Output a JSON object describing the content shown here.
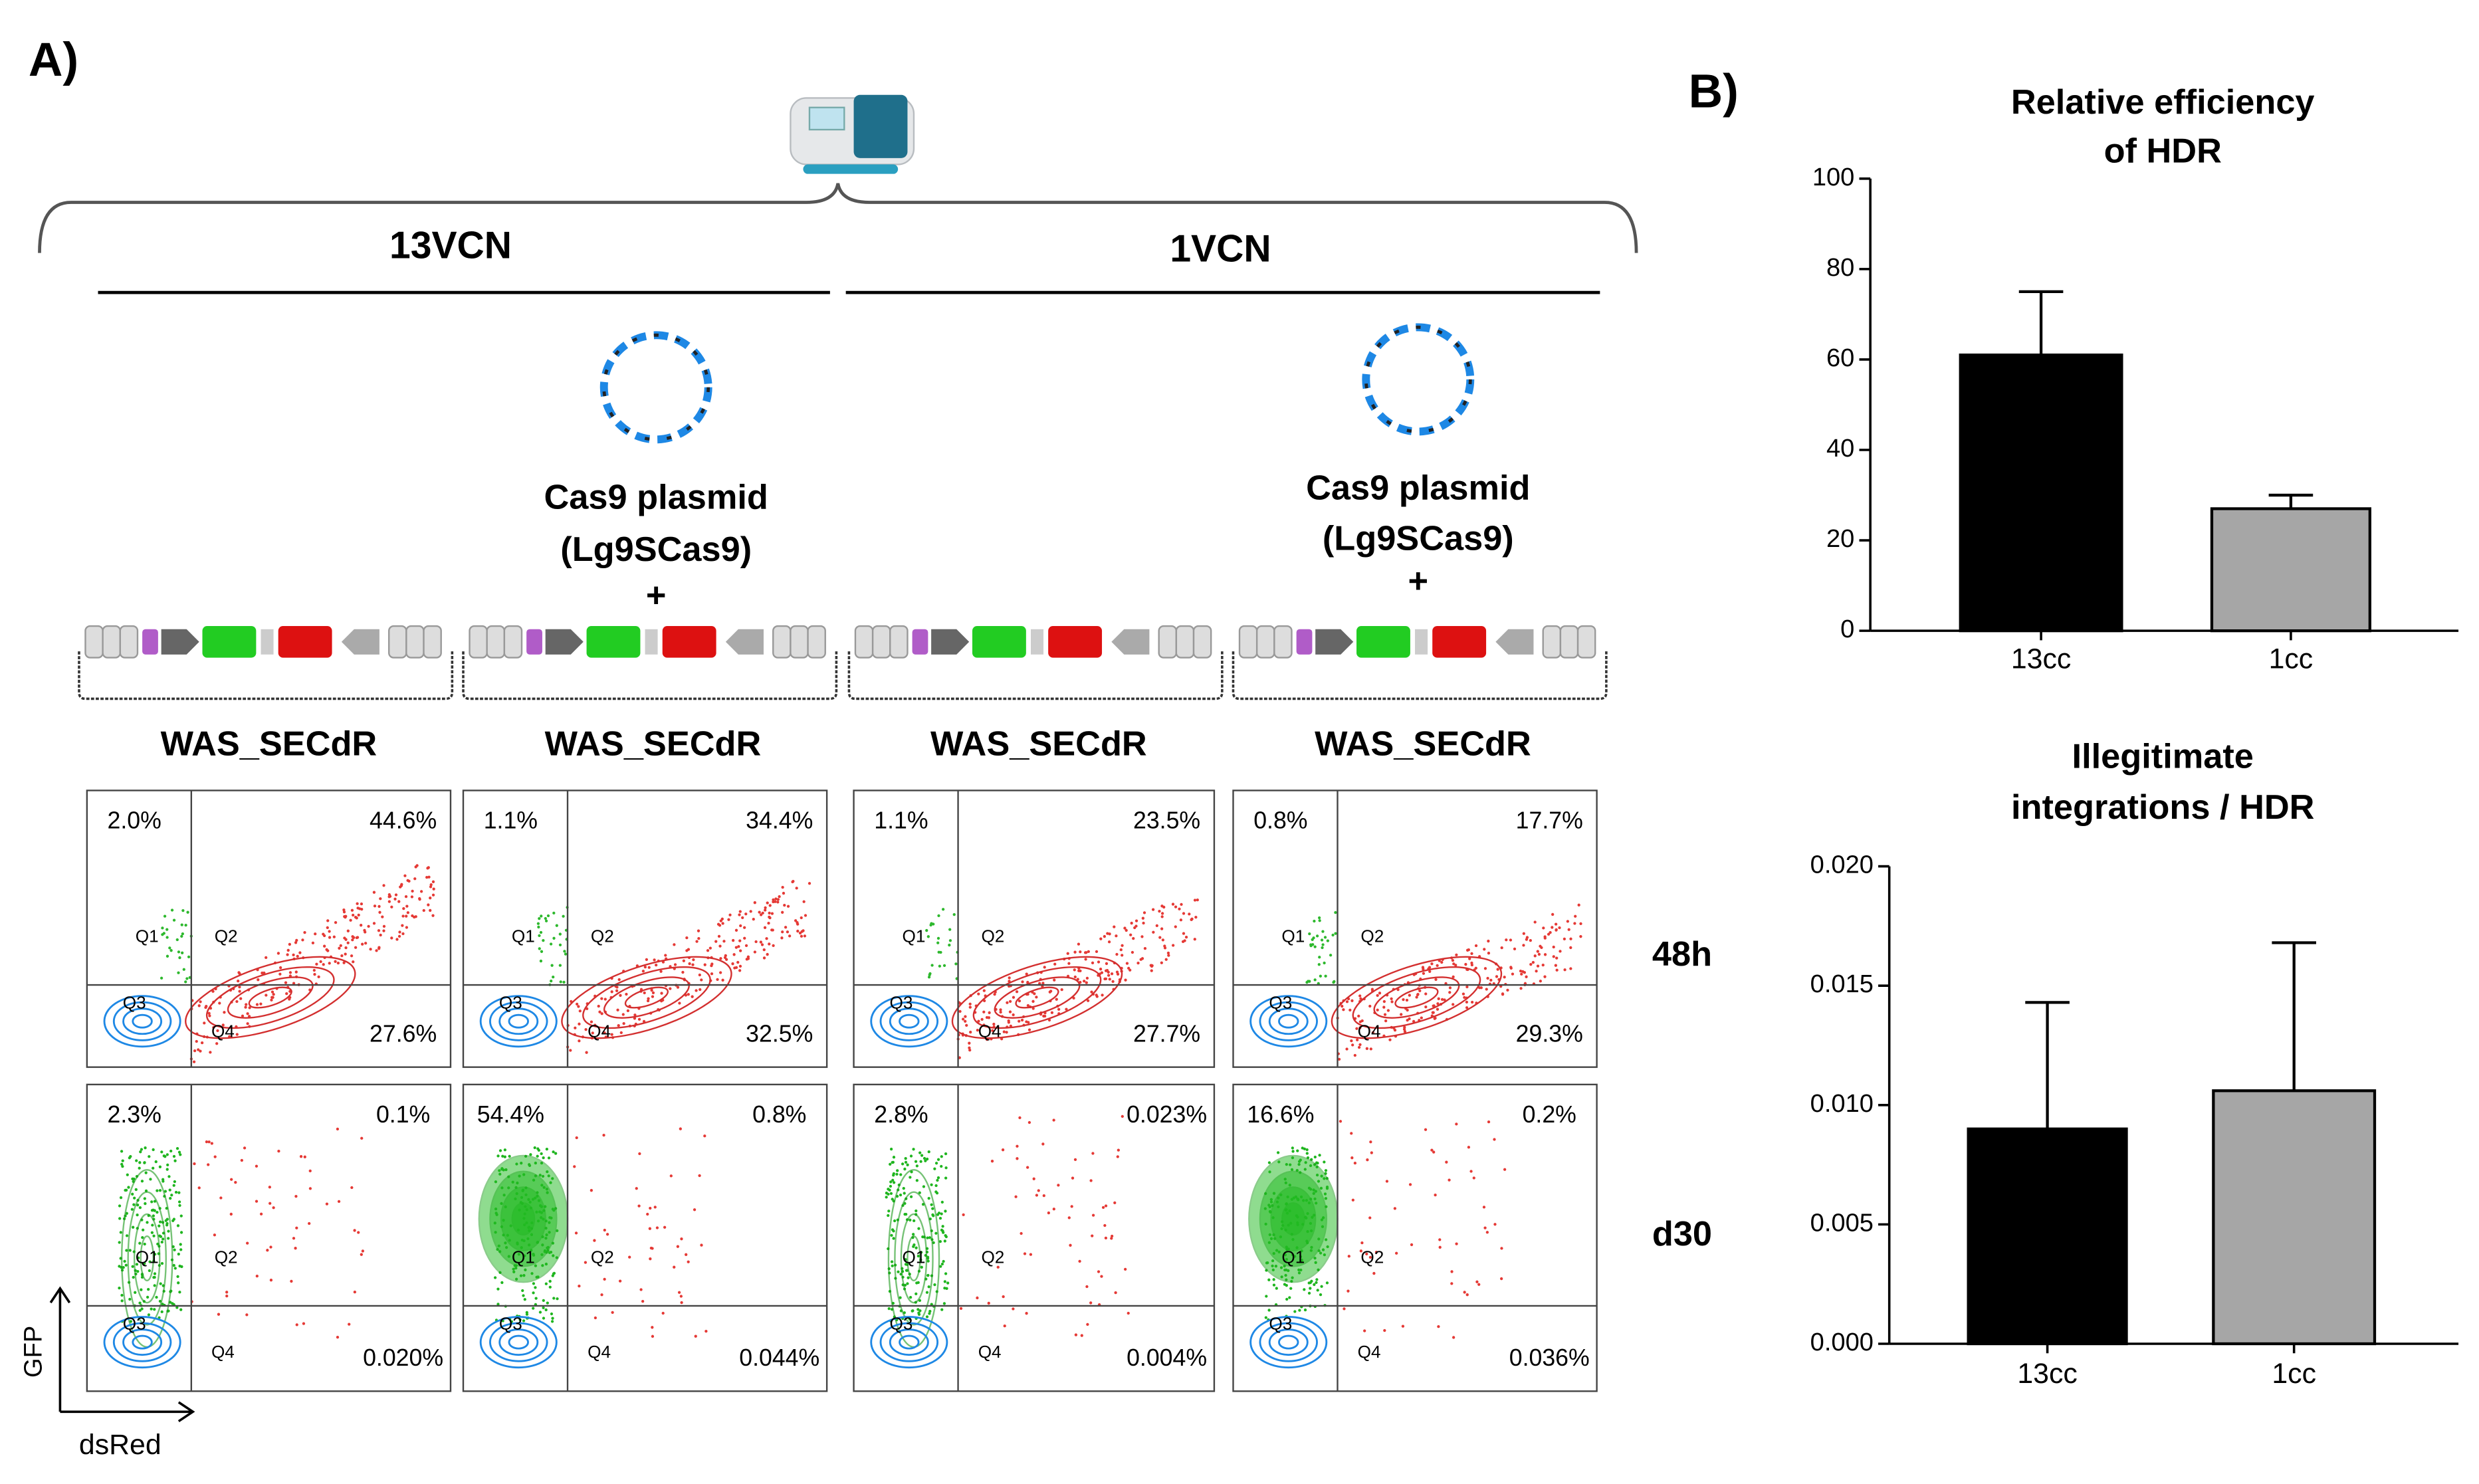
{
  "panel_a": {
    "label": "A)",
    "groups": [
      "13VCN",
      "1VCN"
    ],
    "plasmid": [
      "Cas9  plasmid",
      "(Lg9SCas9)",
      "+"
    ],
    "construct": "WAS_SECdR",
    "timepoints": [
      "48h",
      "d30"
    ],
    "axis_labels": {
      "x": "dsRed",
      "y": "GFP"
    },
    "quadrants": [
      "Q1",
      "Q2",
      "Q3",
      "Q4"
    ],
    "plots": [
      [
        [
          "2.0%",
          "44.6%",
          "27.6%"
        ],
        [
          "1.1%",
          "34.4%",
          "32.5%"
        ],
        [
          "1.1%",
          "23.5%",
          "27.7%"
        ],
        [
          "0.8%",
          "17.7%",
          "29.3%"
        ]
      ],
      [
        [
          "2.3%",
          "0.1%",
          "0.020%"
        ],
        [
          "54.4%",
          "0.8%",
          "0.044%"
        ],
        [
          "2.8%",
          "0.023%",
          "0.004%"
        ],
        [
          "16.6%",
          "0.2%",
          "0.036%"
        ]
      ]
    ]
  },
  "panel_b": {
    "label": "B)"
  },
  "chart_data": [
    {
      "type": "bar",
      "title": [
        "Relative efficiency",
        "of HDR"
      ],
      "categories": [
        "13cc",
        "1cc"
      ],
      "values": [
        61,
        27
      ],
      "errors": [
        14,
        3
      ],
      "colors": [
        "#000000",
        "#a6a6a6"
      ],
      "ylim": [
        0,
        100
      ],
      "yticks": [
        0,
        20,
        40,
        60,
        80,
        100
      ]
    },
    {
      "type": "bar",
      "title": [
        "Illegitimate",
        "integrations / HDR"
      ],
      "categories": [
        "13cc",
        "1cc"
      ],
      "values": [
        0.009,
        0.0106
      ],
      "errors": [
        0.0053,
        0.0062
      ],
      "colors": [
        "#000000",
        "#a6a6a6"
      ],
      "ylim": [
        0,
        0.02
      ],
      "yticks": [
        {
          "value": 0,
          "label": "0.000"
        },
        {
          "value": 0.005,
          "label": "0.005"
        },
        {
          "value": 0.01,
          "label": "0.010"
        },
        {
          "value": 0.015,
          "label": "0.015"
        },
        {
          "value": 0.02,
          "label": "0.020"
        }
      ]
    }
  ]
}
